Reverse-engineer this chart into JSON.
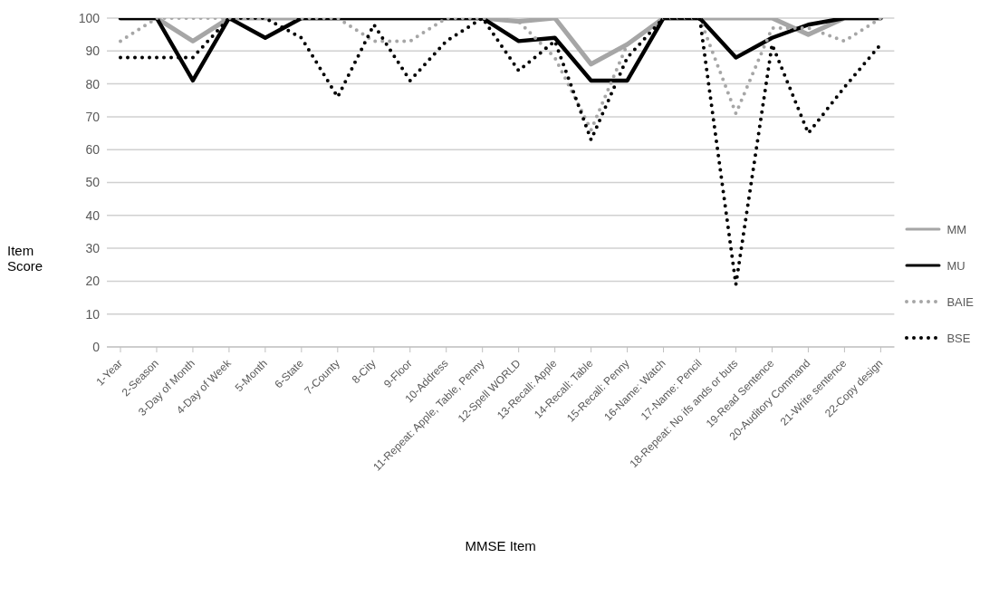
{
  "chart_data": {
    "type": "line",
    "xlabel": "MMSE Item",
    "ylabel": "Item Score",
    "categories": [
      "1-Year",
      "2-Season",
      "3-Day of Month",
      "4-Day of Week",
      "5-Month",
      "6-State",
      "7-County",
      "8-City",
      "9-Floor",
      "10-Address",
      "11-Repeat: Apple, Table, Penny",
      "12-Spell WORLD",
      "13-Recall: Apple",
      "14-Recall: Table",
      "15-Recall: Penny",
      "16-Name: Watch",
      "17-Name: Pencil",
      "18-Repeat: No ifs ands or buts",
      "19-Read Sentence",
      "20-Auditory Command",
      "21-Write sentence",
      "22-Copy design"
    ],
    "series": [
      {
        "name": "MM",
        "color": "#a6a6a6",
        "line_style": "solid",
        "values": [
          100,
          100,
          93,
          100,
          100,
          100,
          100,
          100,
          100,
          100,
          100,
          99,
          100,
          86,
          92,
          100,
          100,
          100,
          100,
          95,
          100,
          100
        ]
      },
      {
        "name": "MU",
        "color": "#000000",
        "line_style": "solid",
        "values": [
          100,
          100,
          81,
          100,
          94,
          100,
          100,
          100,
          100,
          100,
          100,
          93,
          94,
          81,
          81,
          100,
          100,
          88,
          94,
          98,
          100,
          100
        ]
      },
      {
        "name": "BAIE",
        "color": "#a6a6a6",
        "line_style": "dotted",
        "values": [
          93,
          100,
          100,
          100,
          100,
          100,
          100,
          93,
          93,
          100,
          100,
          99,
          88,
          66,
          92,
          100,
          100,
          71,
          97,
          97,
          93,
          100
        ]
      },
      {
        "name": "BSE",
        "color": "#000000",
        "line_style": "dotted",
        "values": [
          88,
          88,
          88,
          100,
          100,
          94,
          76,
          98,
          81,
          93,
          100,
          84,
          93,
          63,
          88,
          100,
          100,
          19,
          92,
          65,
          79,
          92
        ]
      }
    ],
    "ylim": [
      0,
      100
    ],
    "yticks": [
      0,
      10,
      20,
      30,
      40,
      50,
      60,
      70,
      80,
      90,
      100
    ],
    "grid": "y",
    "legend": "right",
    "marker": "none"
  }
}
